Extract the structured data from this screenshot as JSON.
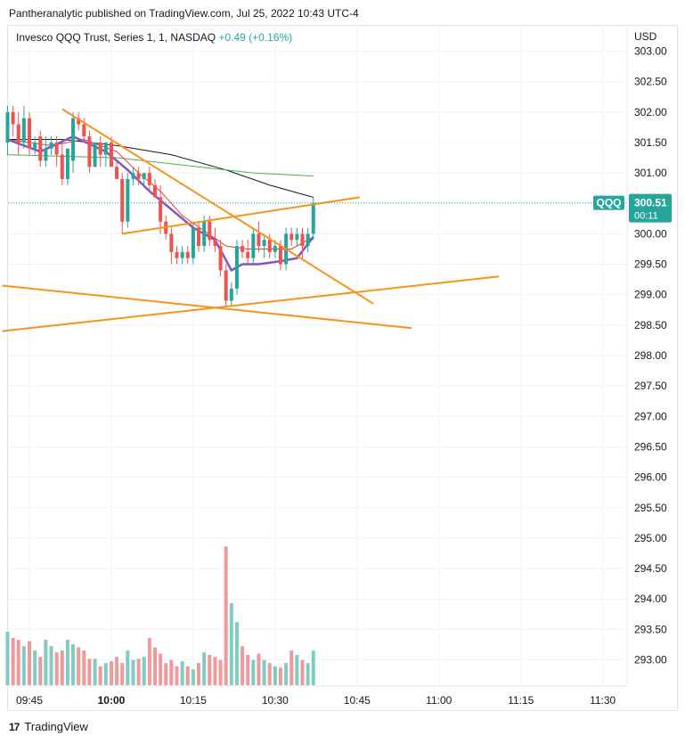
{
  "publisher_line": "Pantheranalytic published on TradingView.com, Jul 25, 2022 10:43 UTC-4",
  "footer": {
    "logo_text": "17",
    "brand": "TradingView"
  },
  "colors": {
    "up": "#26a69a",
    "down": "#ef5350",
    "vol_up": "#80cbc4",
    "vol_down": "#ef9a9a",
    "trendline": "#f7931a",
    "ma_fast": "#7e57c2",
    "ma_mid": "#e53935",
    "ma_slow": "#131722",
    "ma_green": "#4caf50",
    "grid": "#f0f3fa",
    "price_tag": "#26a69a"
  },
  "chart_data": {
    "type": "candlestick",
    "legend": {
      "symbol": "Invesco QQQ Trust, Series 1, 1, NASDAQ",
      "change": "+0.49 (+0.16%)"
    },
    "currency_label": "USD",
    "ylim": [
      292.4,
      303.2
    ],
    "y_ticks": [
      "303.00",
      "302.50",
      "302.00",
      "301.50",
      "301.00",
      "300.50",
      "300.00",
      "299.50",
      "299.00",
      "298.50",
      "298.00",
      "297.50",
      "297.00",
      "296.50",
      "296.00",
      "295.50",
      "295.00",
      "294.50",
      "294.00",
      "293.50",
      "293.00"
    ],
    "x_start_minute": 0,
    "x_end_minute": 56,
    "x_ticks": [
      {
        "label": "09:45",
        "minute": 0,
        "bold": false
      },
      {
        "label": "10:00",
        "minute": 15,
        "bold": true
      },
      {
        "label": "10:15",
        "minute": 30,
        "bold": false
      },
      {
        "label": "10:30",
        "minute": 45,
        "bold": false
      },
      {
        "label": "10:45",
        "minute": 60,
        "bold": false
      },
      {
        "label": "11:00",
        "minute": 75,
        "bold": false
      },
      {
        "label": "11:15",
        "minute": 90,
        "bold": false
      },
      {
        "label": "11:30",
        "minute": 105,
        "bold": false
      }
    ],
    "last_price": {
      "ticker": "QQQ",
      "price": "300.51",
      "countdown": "00:11",
      "value": 300.51
    },
    "candles": [
      {
        "o": 301.5,
        "h": 302.1,
        "l": 301.3,
        "c": 302.0
      },
      {
        "o": 302.0,
        "h": 302.1,
        "l": 301.6,
        "c": 301.8
      },
      {
        "o": 301.8,
        "h": 302.0,
        "l": 301.3,
        "c": 301.5
      },
      {
        "o": 301.5,
        "h": 302.1,
        "l": 301.4,
        "c": 301.9
      },
      {
        "o": 301.9,
        "h": 302.0,
        "l": 301.3,
        "c": 301.4
      },
      {
        "o": 301.4,
        "h": 301.6,
        "l": 301.3,
        "c": 301.5
      },
      {
        "o": 301.6,
        "h": 301.7,
        "l": 301.1,
        "c": 301.2
      },
      {
        "o": 301.2,
        "h": 301.6,
        "l": 301.1,
        "c": 301.4
      },
      {
        "o": 301.4,
        "h": 301.6,
        "l": 301.3,
        "c": 301.5
      },
      {
        "o": 301.5,
        "h": 301.6,
        "l": 301.1,
        "c": 301.3
      },
      {
        "o": 301.3,
        "h": 301.5,
        "l": 300.8,
        "c": 300.9
      },
      {
        "o": 300.9,
        "h": 301.4,
        "l": 300.8,
        "c": 301.4
      },
      {
        "o": 301.2,
        "h": 302.0,
        "l": 301.0,
        "c": 301.9
      },
      {
        "o": 301.9,
        "h": 302.0,
        "l": 301.7,
        "c": 301.8
      },
      {
        "o": 301.8,
        "h": 301.9,
        "l": 301.5,
        "c": 301.6
      },
      {
        "o": 301.6,
        "h": 301.7,
        "l": 301.0,
        "c": 301.1
      },
      {
        "o": 301.1,
        "h": 301.5,
        "l": 301.1,
        "c": 301.5
      },
      {
        "o": 301.5,
        "h": 301.6,
        "l": 301.1,
        "c": 301.3
      },
      {
        "o": 301.3,
        "h": 301.5,
        "l": 301.1,
        "c": 301.5
      },
      {
        "o": 301.5,
        "h": 301.6,
        "l": 301.1,
        "c": 301.1
      },
      {
        "o": 301.1,
        "h": 301.2,
        "l": 300.9,
        "c": 300.9
      },
      {
        "o": 300.9,
        "h": 301.0,
        "l": 300.0,
        "c": 300.2
      },
      {
        "o": 300.2,
        "h": 301.0,
        "l": 300.1,
        "c": 300.9
      },
      {
        "o": 300.9,
        "h": 301.1,
        "l": 300.8,
        "c": 301.0
      },
      {
        "o": 301.0,
        "h": 301.1,
        "l": 300.8,
        "c": 300.9
      },
      {
        "o": 300.9,
        "h": 301.0,
        "l": 300.8,
        "c": 301.0
      },
      {
        "o": 301.0,
        "h": 301.1,
        "l": 300.7,
        "c": 300.8
      },
      {
        "o": 300.8,
        "h": 300.9,
        "l": 300.6,
        "c": 300.6
      },
      {
        "o": 300.6,
        "h": 300.8,
        "l": 300.0,
        "c": 300.2
      },
      {
        "o": 300.2,
        "h": 300.3,
        "l": 299.9,
        "c": 300.0
      },
      {
        "o": 300.0,
        "h": 300.1,
        "l": 299.5,
        "c": 299.7
      },
      {
        "o": 299.7,
        "h": 299.8,
        "l": 299.5,
        "c": 299.6
      },
      {
        "o": 299.6,
        "h": 299.8,
        "l": 299.5,
        "c": 299.7
      },
      {
        "o": 299.7,
        "h": 299.8,
        "l": 299.5,
        "c": 299.6
      },
      {
        "o": 299.6,
        "h": 300.2,
        "l": 299.5,
        "c": 300.1
      },
      {
        "o": 300.1,
        "h": 300.2,
        "l": 299.7,
        "c": 299.8
      },
      {
        "o": 299.8,
        "h": 300.3,
        "l": 299.7,
        "c": 300.2
      },
      {
        "o": 300.2,
        "h": 300.3,
        "l": 299.8,
        "c": 299.9
      },
      {
        "o": 299.9,
        "h": 300.1,
        "l": 299.7,
        "c": 299.8
      },
      {
        "o": 299.8,
        "h": 299.9,
        "l": 299.3,
        "c": 299.4
      },
      {
        "o": 299.4,
        "h": 299.5,
        "l": 298.8,
        "c": 298.9
      },
      {
        "o": 298.9,
        "h": 299.2,
        "l": 298.8,
        "c": 299.1
      },
      {
        "o": 299.1,
        "h": 299.9,
        "l": 299.0,
        "c": 299.8
      },
      {
        "o": 299.8,
        "h": 299.9,
        "l": 299.6,
        "c": 299.7
      },
      {
        "o": 299.7,
        "h": 299.9,
        "l": 299.5,
        "c": 299.6
      },
      {
        "o": 299.6,
        "h": 300.1,
        "l": 299.5,
        "c": 300.0
      },
      {
        "o": 300.0,
        "h": 300.2,
        "l": 299.7,
        "c": 299.8
      },
      {
        "o": 299.8,
        "h": 300.0,
        "l": 299.6,
        "c": 299.9
      },
      {
        "o": 299.9,
        "h": 300.0,
        "l": 299.6,
        "c": 299.7
      },
      {
        "o": 299.7,
        "h": 299.9,
        "l": 299.6,
        "c": 299.8
      },
      {
        "o": 299.8,
        "h": 299.9,
        "l": 299.4,
        "c": 299.5
      },
      {
        "o": 299.5,
        "h": 300.1,
        "l": 299.4,
        "c": 300.0
      },
      {
        "o": 300.0,
        "h": 300.1,
        "l": 299.8,
        "c": 299.9
      },
      {
        "o": 299.9,
        "h": 300.1,
        "l": 299.8,
        "c": 300.0
      },
      {
        "o": 300.0,
        "h": 300.1,
        "l": 299.6,
        "c": 299.8
      },
      {
        "o": 299.8,
        "h": 300.1,
        "l": 299.7,
        "c": 300.0
      },
      {
        "o": 300.0,
        "h": 300.6,
        "l": 299.9,
        "c": 300.51
      }
    ],
    "volume": [
      0.85,
      0.75,
      0.72,
      0.62,
      0.7,
      0.55,
      0.45,
      0.72,
      0.62,
      0.52,
      0.55,
      0.72,
      0.65,
      0.6,
      0.55,
      0.42,
      0.42,
      0.3,
      0.35,
      0.38,
      0.45,
      0.35,
      0.55,
      0.4,
      0.42,
      0.45,
      0.75,
      0.6,
      0.5,
      0.35,
      0.4,
      0.3,
      0.38,
      0.3,
      0.25,
      0.35,
      0.52,
      0.48,
      0.45,
      0.4,
      2.2,
      1.3,
      1.0,
      0.62,
      0.48,
      0.4,
      0.5,
      0.4,
      0.35,
      0.3,
      0.28,
      0.35,
      0.55,
      0.48,
      0.4,
      0.35,
      0.55
    ],
    "volume_ylim": [
      0,
      2.6
    ],
    "moving_averages": [
      {
        "key": "slow",
        "points": [
          [
            0,
            301.55
          ],
          [
            10,
            301.55
          ],
          [
            20,
            301.45
          ],
          [
            30,
            301.3
          ],
          [
            40,
            301.05
          ],
          [
            48,
            300.8
          ],
          [
            54,
            300.65
          ],
          [
            56,
            300.6
          ]
        ]
      },
      {
        "key": "green",
        "points": [
          [
            0,
            301.3
          ],
          [
            20,
            301.25
          ],
          [
            35,
            301.1
          ],
          [
            45,
            301.0
          ],
          [
            56,
            300.95
          ]
        ]
      },
      {
        "key": "mid",
        "points": [
          [
            0,
            301.55
          ],
          [
            8,
            301.45
          ],
          [
            14,
            301.55
          ],
          [
            20,
            301.35
          ],
          [
            24,
            301.0
          ],
          [
            28,
            300.7
          ],
          [
            32,
            300.3
          ],
          [
            36,
            300.05
          ],
          [
            40,
            299.8
          ],
          [
            44,
            299.75
          ],
          [
            48,
            299.75
          ],
          [
            52,
            299.75
          ],
          [
            56,
            299.95
          ]
        ]
      },
      {
        "key": "fast",
        "points": [
          [
            0,
            301.55
          ],
          [
            6,
            301.35
          ],
          [
            12,
            301.6
          ],
          [
            18,
            301.35
          ],
          [
            22,
            301.05
          ],
          [
            26,
            300.7
          ],
          [
            30,
            300.4
          ],
          [
            34,
            300.1
          ],
          [
            38,
            299.9
          ],
          [
            41,
            299.4
          ],
          [
            43,
            299.5
          ],
          [
            46,
            299.5
          ],
          [
            50,
            299.55
          ],
          [
            53,
            299.6
          ],
          [
            56,
            299.95
          ]
        ]
      }
    ],
    "trendlines": [
      {
        "from": [
          10,
          302.05
        ],
        "to": [
          67,
          298.85
        ]
      },
      {
        "from": [
          21,
          300.0
        ],
        "to": [
          64.5,
          300.6
        ]
      },
      {
        "from": [
          -1,
          299.15
        ],
        "to": [
          74,
          298.45
        ]
      },
      {
        "from": [
          -1,
          298.4
        ],
        "to": [
          90,
          299.3
        ]
      }
    ]
  }
}
